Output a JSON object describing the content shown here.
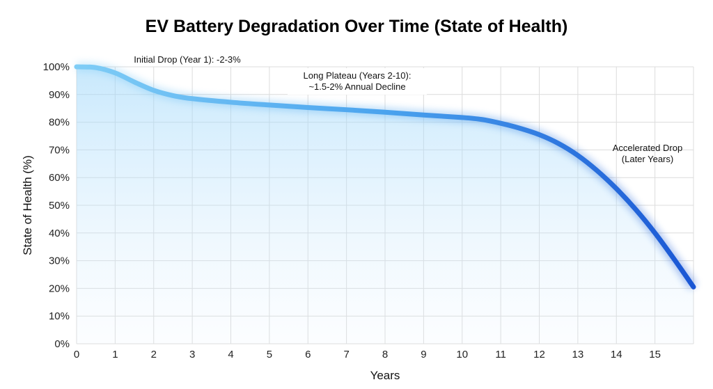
{
  "chart_data": {
    "type": "line",
    "title": "EV Battery Degradation Over Time (State of Health)",
    "xlabel": "Years",
    "ylabel": "State of Health (%)",
    "xlim": [
      0,
      16
    ],
    "ylim": [
      0,
      100
    ],
    "grid": true,
    "x_ticks": [
      "0",
      "1",
      "2",
      "3",
      "4",
      "5",
      "6",
      "7",
      "8",
      "9",
      "10",
      "11",
      "12",
      "13",
      "14",
      "15"
    ],
    "y_ticks": [
      "0%",
      "10%",
      "20%",
      "30%",
      "40%",
      "50%",
      "60%",
      "70%",
      "80%",
      "90%",
      "100%"
    ],
    "series": [
      {
        "x": [
          0,
          0.5,
          1,
          1.5,
          2,
          2.5,
          3,
          4,
          5,
          6,
          7,
          8,
          9,
          10,
          10.5,
          11,
          11.5,
          12,
          12.5,
          13,
          13.5,
          14,
          14.5,
          15,
          15.5,
          16
        ],
        "y": [
          100,
          99.7,
          97.8,
          94.5,
          91.5,
          89.6,
          88.5,
          87.2,
          86.2,
          85.3,
          84.5,
          83.6,
          82.6,
          81.7,
          81,
          79.6,
          77.8,
          75.5,
          72.3,
          68,
          62.5,
          56,
          48.5,
          40,
          30.5,
          20.5
        ],
        "color_start": "#7fcdf6",
        "color_end": "#1a56d4"
      }
    ],
    "annotations": [
      {
        "text": "Initial Drop (Year 1): -2-3%",
        "lines": [
          "Initial Drop (Year 1): -2-3%"
        ]
      },
      {
        "text": "Long Plateau (Years 2-10): ~1.5-2% Annual Decline",
        "lines": [
          "Long Plateau (Years 2-10):",
          "~1.5-2% Annual Decline"
        ]
      },
      {
        "text": "Accelerated Drop (Later Years)",
        "lines": [
          "Accelerated Drop",
          "(Later Years)"
        ]
      }
    ]
  }
}
